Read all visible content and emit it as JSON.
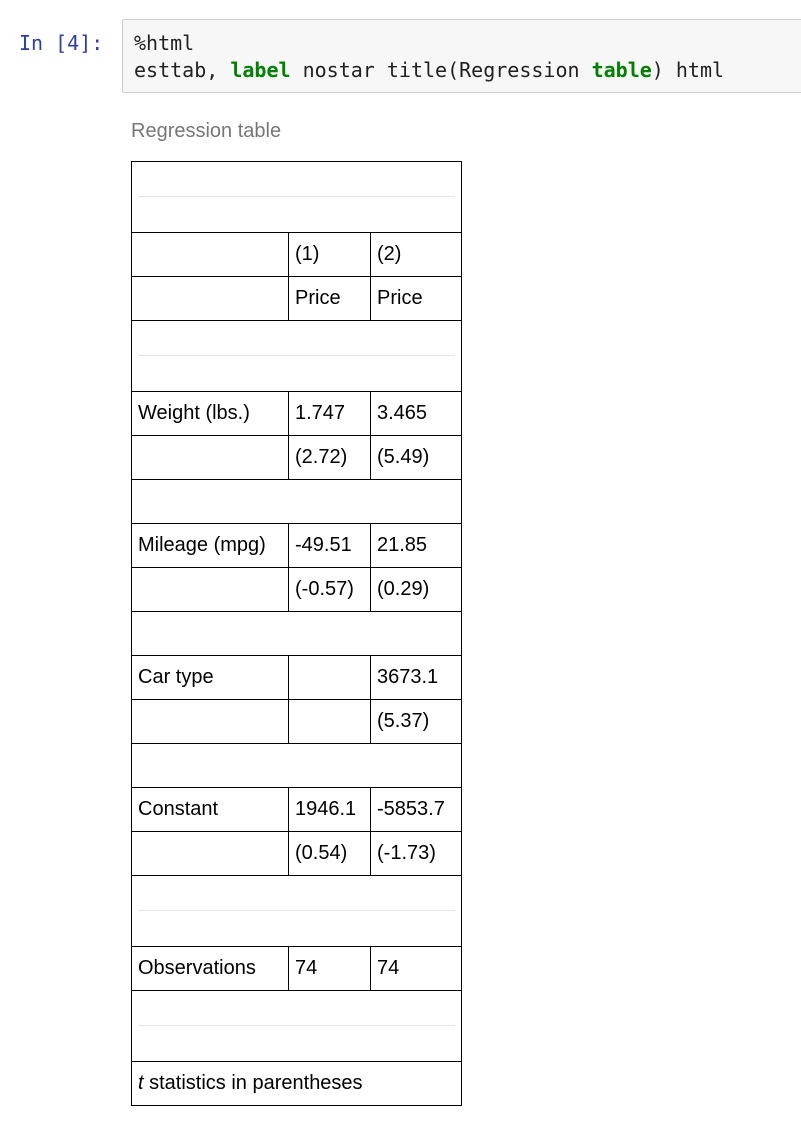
{
  "cell": {
    "prompt": "In [4]:",
    "code_line1": "%html",
    "code_line2_prefix": "esttab, ",
    "code_kw1": "label",
    "code_mid": " nostar title(Regression ",
    "code_kw2": "table",
    "code_suffix": ") html"
  },
  "output": {
    "caption": "Regression table",
    "header": {
      "col_numbers": [
        "(1)",
        "(2)"
      ],
      "col_depvars": [
        "Price",
        "Price"
      ]
    },
    "rows": [
      {
        "label": "Weight (lbs.)",
        "coef": [
          "1.747",
          "3.465"
        ],
        "tstat": [
          "(2.72)",
          "(5.49)"
        ]
      },
      {
        "label": "Mileage (mpg)",
        "coef": [
          "-49.51",
          "21.85"
        ],
        "tstat": [
          "(-0.57)",
          "(0.29)"
        ]
      },
      {
        "label": "Car type",
        "coef": [
          "",
          "3673.1"
        ],
        "tstat": [
          "",
          "(5.37)"
        ]
      },
      {
        "label": "Constant",
        "coef": [
          "1946.1",
          "-5853.7"
        ],
        "tstat": [
          "(0.54)",
          "(-1.73)"
        ]
      }
    ],
    "observations": {
      "label": "Observations",
      "values": [
        "74",
        "74"
      ]
    },
    "note": {
      "italic": "t",
      "rest": " statistics in parentheses"
    }
  }
}
